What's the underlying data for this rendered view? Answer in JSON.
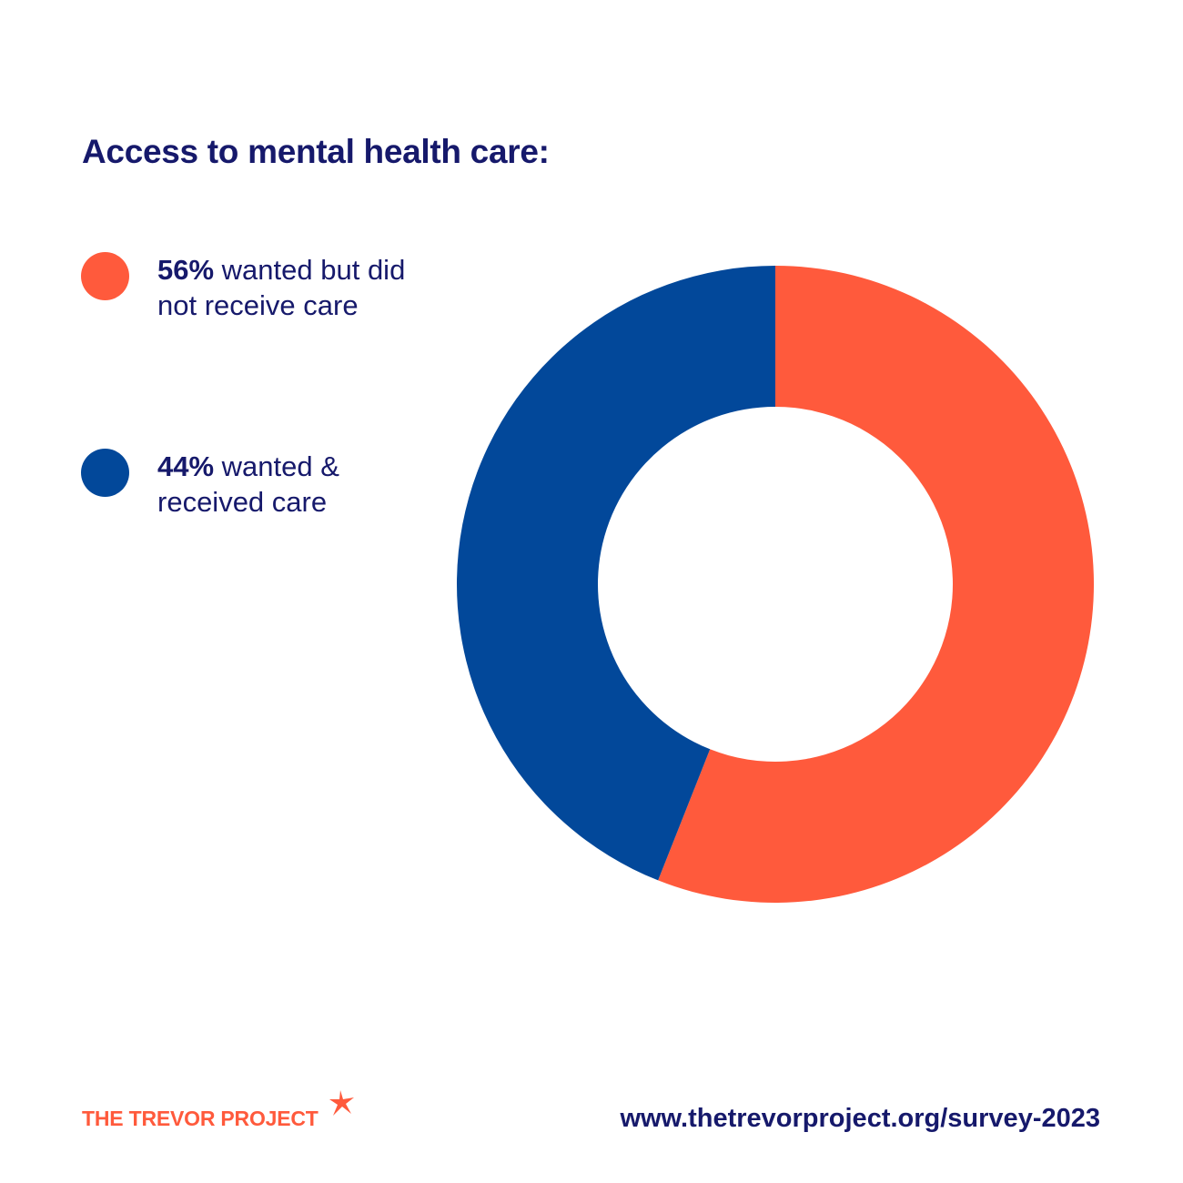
{
  "chart_data": {
    "type": "pie",
    "donut": true,
    "title": "Access to mental health care:",
    "slices": [
      {
        "label": "wanted but did not receive care",
        "value": 56,
        "color": "#ff5a3c"
      },
      {
        "label": "wanted & received care",
        "value": 44,
        "color": "#02489a"
      }
    ],
    "legend_position": "left"
  },
  "legend": [
    {
      "pct": "56%",
      "text": " wanted but did not receive care",
      "color": "#ff5a3c"
    },
    {
      "pct": "44%",
      "text": " wanted & received care",
      "color": "#02489a"
    }
  ],
  "footer": {
    "logo_text": "THE TREVOR PROJECT",
    "url": "www.thetrevorproject.org/survey-2023"
  },
  "colors": {
    "text": "#16196b",
    "accent": "#ff5a3c",
    "blue": "#02489a"
  }
}
